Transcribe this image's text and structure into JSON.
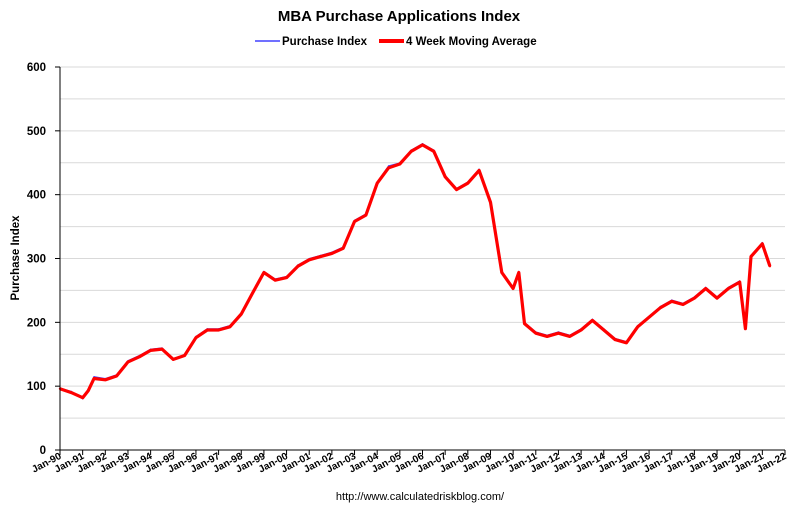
{
  "chart_data": {
    "type": "line",
    "title": "MBA Purchase Applications Index",
    "ylabel": "Purchase Index",
    "xlabel": "",
    "ylim": [
      0,
      600
    ],
    "yticks": [
      0,
      100,
      200,
      300,
      400,
      500,
      600
    ],
    "xlim": [
      "1990-01",
      "2022-01"
    ],
    "xticks": [
      "Jan-90",
      "Jan-91",
      "Jan-92",
      "Jan-93",
      "Jan-94",
      "Jan-95",
      "Jan-96",
      "Jan-97",
      "Jan-98",
      "Jan-99",
      "Jan-00",
      "Jan-01",
      "Jan-02",
      "Jan-03",
      "Jan-04",
      "Jan-05",
      "Jan-06",
      "Jan-07",
      "Jan-08",
      "Jan-09",
      "Jan-10",
      "Jan-11",
      "Jan-12",
      "Jan-13",
      "Jan-14",
      "Jan-15",
      "Jan-16",
      "Jan-17",
      "Jan-18",
      "Jan-19",
      "Jan-20",
      "Jan-21",
      "Jan-22"
    ],
    "grid": true,
    "legend_position": "top",
    "source_note": "http://www.calculatedriskblog.com/",
    "x": [
      "1990-01",
      "1990-07",
      "1991-01",
      "1991-04",
      "1991-07",
      "1992-01",
      "1992-07",
      "1993-01",
      "1993-07",
      "1994-01",
      "1994-07",
      "1995-01",
      "1995-07",
      "1996-01",
      "1996-07",
      "1997-01",
      "1997-07",
      "1998-01",
      "1998-07",
      "1999-01",
      "1999-07",
      "2000-01",
      "2000-07",
      "2001-01",
      "2001-07",
      "2002-01",
      "2002-07",
      "2003-01",
      "2003-07",
      "2004-01",
      "2004-07",
      "2005-01",
      "2005-07",
      "2006-01",
      "2006-07",
      "2007-01",
      "2007-07",
      "2008-01",
      "2008-07",
      "2009-01",
      "2009-07",
      "2010-01",
      "2010-04",
      "2010-07",
      "2011-01",
      "2011-07",
      "2012-01",
      "2012-07",
      "2013-01",
      "2013-07",
      "2014-01",
      "2014-07",
      "2015-01",
      "2015-07",
      "2016-01",
      "2016-07",
      "2017-01",
      "2017-07",
      "2018-01",
      "2018-07",
      "2019-01",
      "2019-07",
      "2020-01",
      "2020-04",
      "2020-07",
      "2021-01",
      "2021-05"
    ],
    "series": [
      {
        "name": "Purchase Index",
        "color": "#4040ff",
        "values": [
          97,
          92,
          80,
          95,
          115,
          112,
          118,
          140,
          148,
          158,
          160,
          142,
          150,
          178,
          190,
          190,
          195,
          215,
          248,
          280,
          268,
          272,
          290,
          300,
          305,
          310,
          318,
          360,
          370,
          420,
          445,
          450,
          470,
          480,
          470,
          430,
          410,
          420,
          440,
          390,
          280,
          255,
          280,
          200,
          185,
          180,
          185,
          180,
          190,
          205,
          190,
          175,
          170,
          195,
          210,
          225,
          235,
          230,
          240,
          255,
          240,
          255,
          265,
          190,
          305,
          325,
          290
        ]
      },
      {
        "name": "4 Week Moving Average",
        "color": "#ff0000",
        "values": [
          96,
          90,
          82,
          93,
          112,
          110,
          116,
          138,
          146,
          156,
          158,
          142,
          148,
          176,
          188,
          188,
          193,
          213,
          246,
          278,
          266,
          270,
          288,
          298,
          303,
          308,
          316,
          358,
          368,
          418,
          442,
          448,
          468,
          478,
          468,
          428,
          408,
          418,
          438,
          388,
          278,
          253,
          278,
          198,
          183,
          178,
          183,
          178,
          188,
          203,
          188,
          173,
          168,
          193,
          208,
          223,
          233,
          228,
          238,
          253,
          238,
          253,
          263,
          190,
          303,
          323,
          288
        ]
      }
    ]
  }
}
